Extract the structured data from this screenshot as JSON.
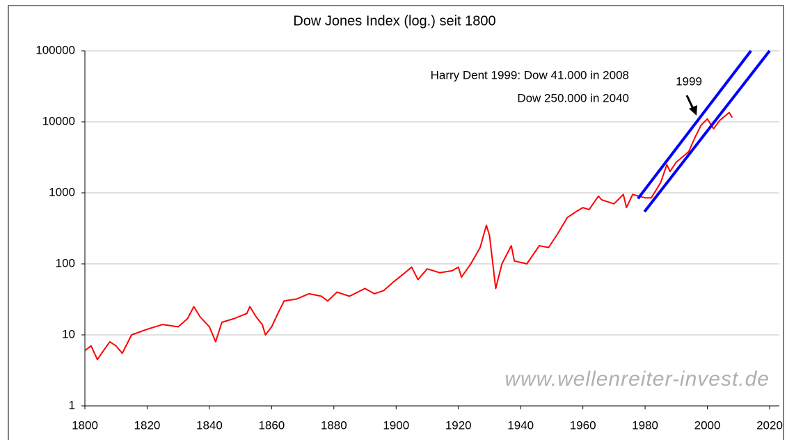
{
  "chart_data": {
    "type": "line",
    "title": "Dow Jones Index (log.) seit 1800",
    "yscale": "log",
    "grid": true,
    "xlim": [
      1800,
      2020
    ],
    "xticks": [
      1800,
      1820,
      1840,
      1860,
      1880,
      1900,
      1920,
      1940,
      1960,
      1980,
      2000,
      2020
    ],
    "ylim": [
      1,
      100000
    ],
    "yticks": [
      1,
      10,
      100,
      1000,
      10000,
      100000
    ],
    "annotations": [
      "Harry Dent 1999: Dow  41.000 in 2008",
      "Dow  250.000 in 2040",
      "1999",
      "www.wellenreiter-invest.de"
    ],
    "series": [
      {
        "color": "#ff0000",
        "x": [
          1800,
          1802,
          1804,
          1806,
          1808,
          1810,
          1812,
          1815,
          1820,
          1825,
          1830,
          1833,
          1835,
          1837,
          1840,
          1842,
          1844,
          1848,
          1852,
          1853,
          1855,
          1857,
          1858,
          1860,
          1862,
          1864,
          1868,
          1872,
          1876,
          1878,
          1881,
          1885,
          1890,
          1893,
          1896,
          1899,
          1902,
          1905,
          1907,
          1910,
          1914,
          1918,
          1920,
          1921,
          1924,
          1927,
          1929,
          1930,
          1932,
          1934,
          1937,
          1938,
          1942,
          1946,
          1949,
          1952,
          1955,
          1958,
          1960,
          1962,
          1965,
          1966,
          1970,
          1973,
          1974,
          1976,
          1980,
          1982,
          1985,
          1987,
          1988,
          1990,
          1994,
          1996,
          1998,
          2000,
          2002,
          2004,
          2007,
          2008
        ],
        "values": [
          6,
          7,
          4.5,
          6,
          8,
          7,
          5.5,
          10,
          12,
          14,
          13,
          17,
          25,
          18,
          13,
          8,
          15,
          17,
          20,
          25,
          18,
          14,
          10,
          13,
          20,
          30,
          32,
          38,
          35,
          30,
          40,
          35,
          45,
          38,
          42,
          55,
          70,
          90,
          60,
          85,
          75,
          80,
          90,
          65,
          100,
          170,
          350,
          250,
          45,
          100,
          180,
          110,
          100,
          180,
          170,
          270,
          450,
          550,
          620,
          580,
          900,
          800,
          700,
          950,
          620,
          950,
          850,
          850,
          1400,
          2500,
          2000,
          2700,
          3800,
          6000,
          9000,
          11000,
          8000,
          10500,
          13500,
          11500
        ]
      },
      {
        "color": "#0000ff",
        "x": [
          1977.7,
          2014
        ],
        "values": [
          830,
          100000
        ]
      },
      {
        "color": "#0000ff",
        "x": [
          1979.8,
          2020
        ],
        "values": [
          543,
          100000
        ]
      }
    ]
  }
}
